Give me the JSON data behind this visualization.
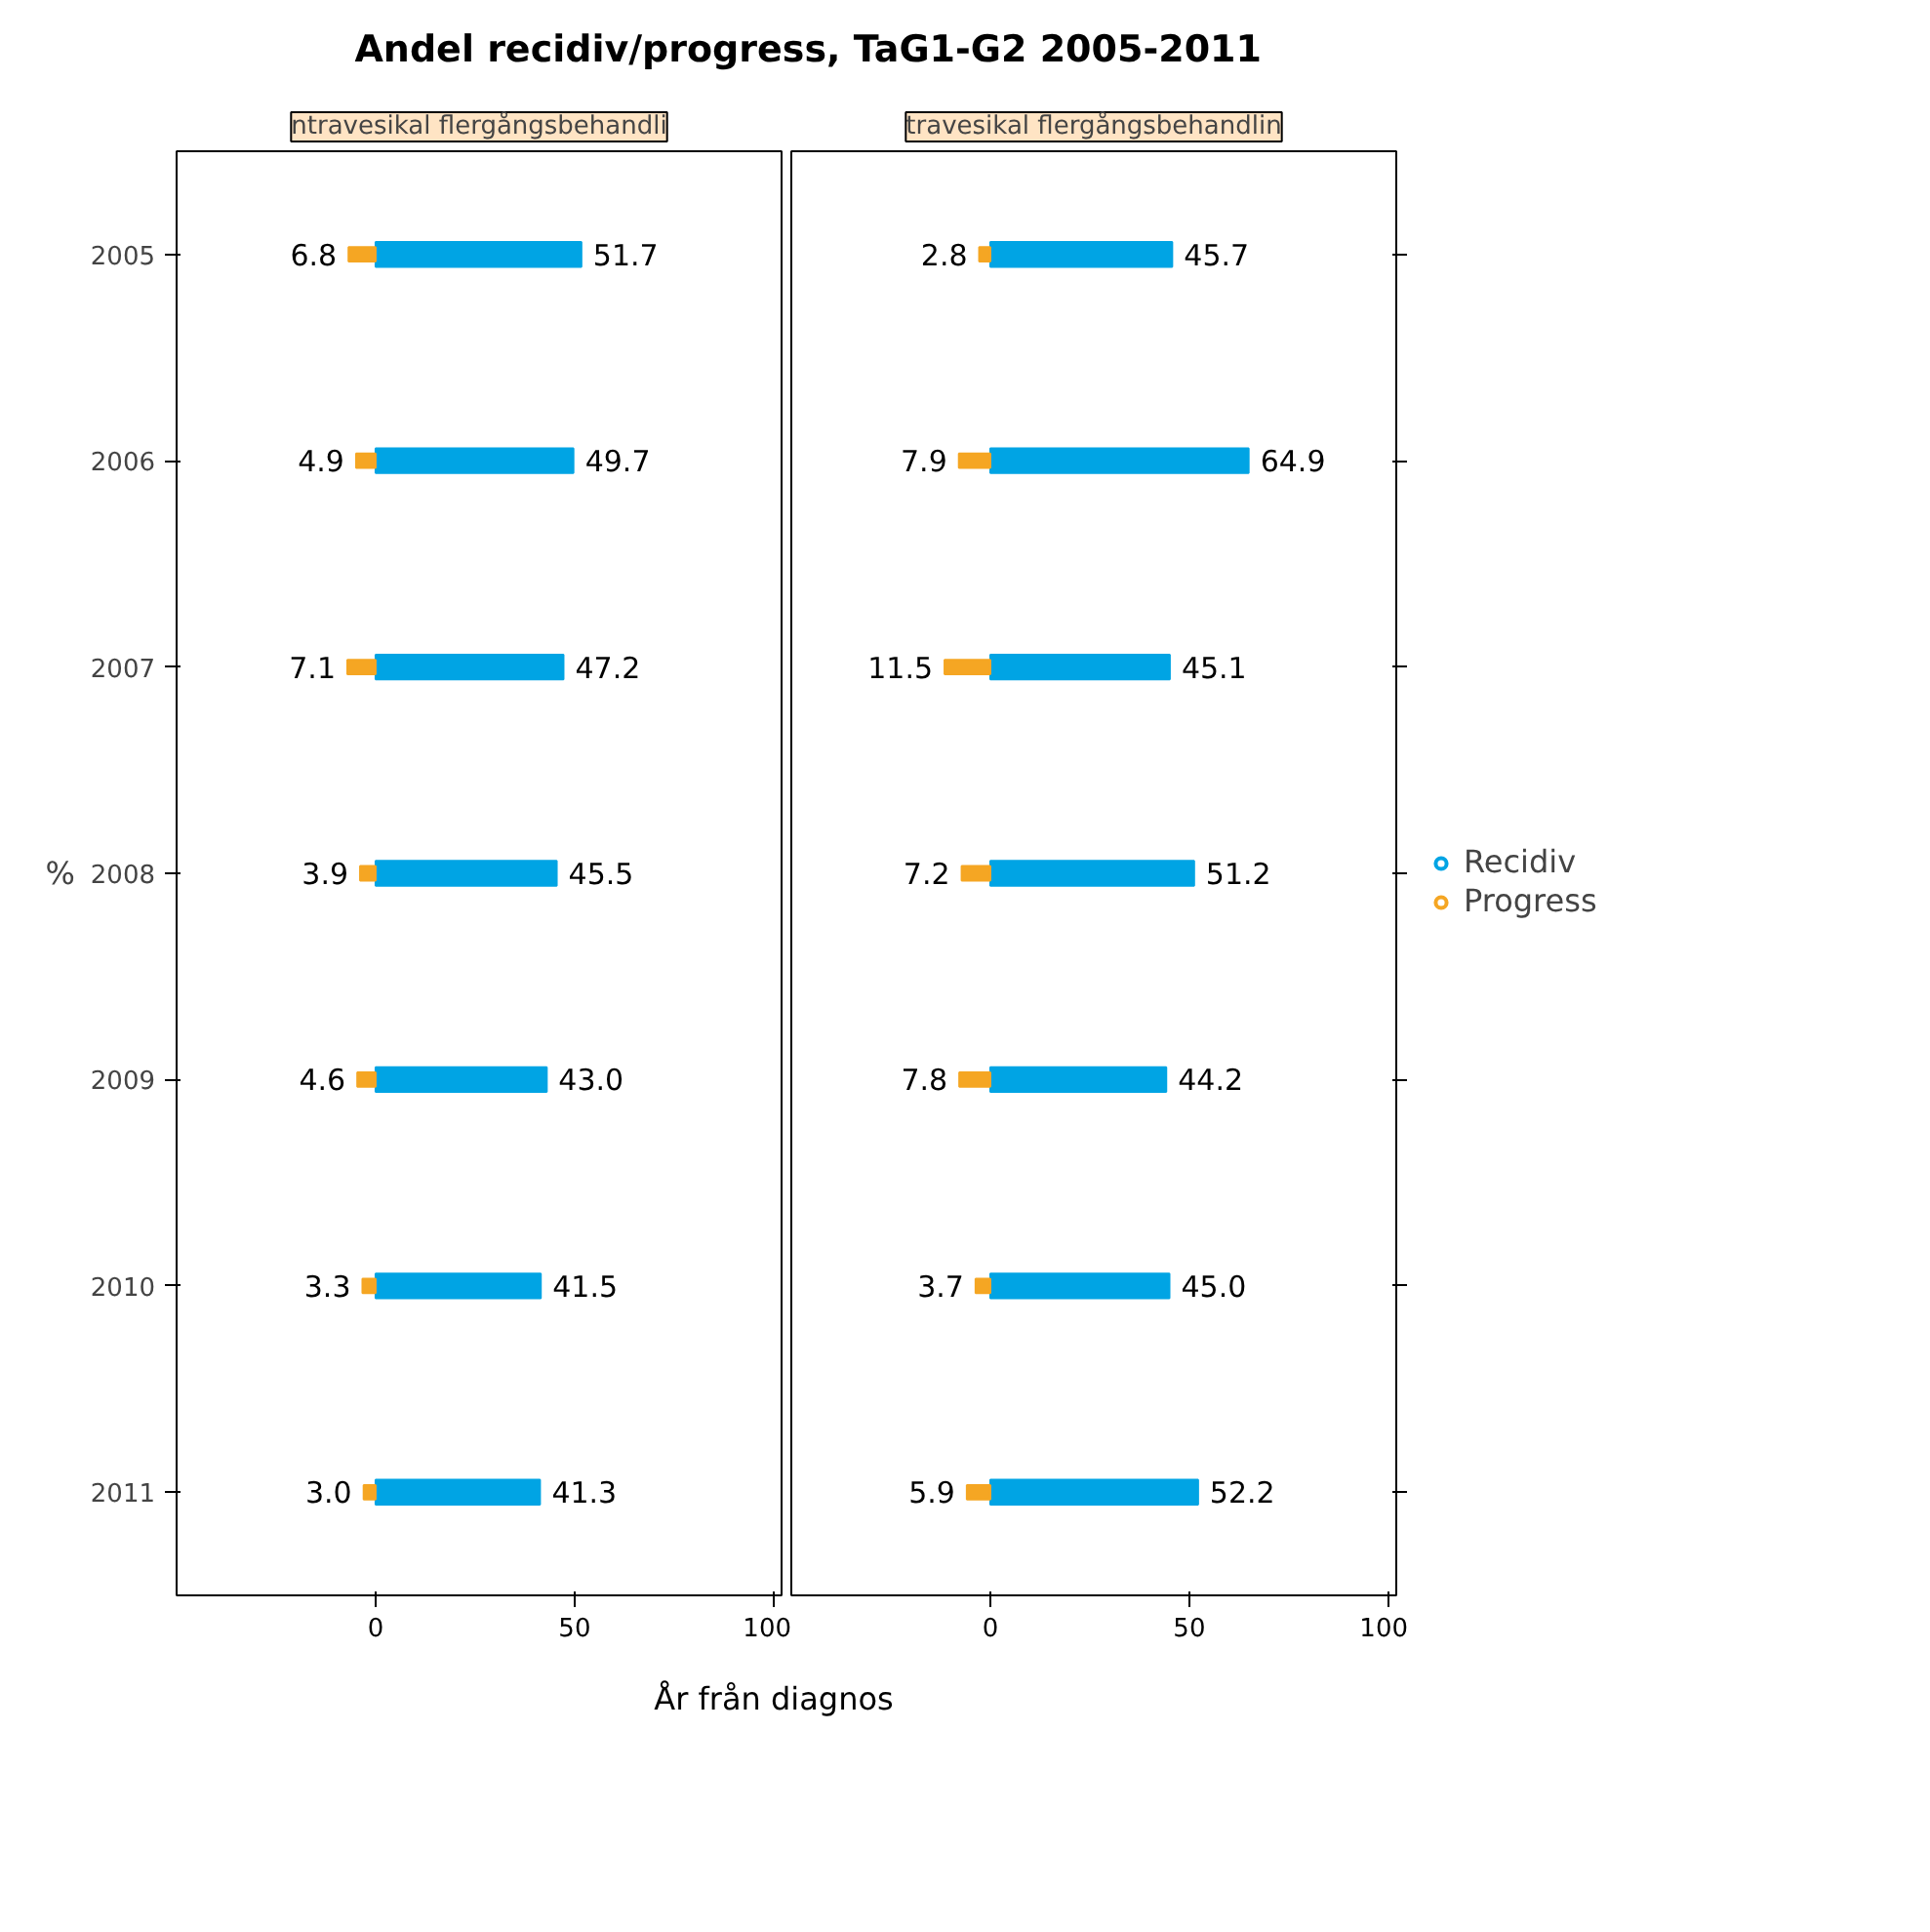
{
  "chart_data": [
    {
      "type": "bar",
      "orientation": "horizontal",
      "title": "Andel recidiv/progress, TaG1-G2 2005-2011",
      "subtitle": "ntravesikal flergångsbehandli",
      "xlabel": "År från diagnos",
      "ylabel": "%",
      "categories": [
        "2005",
        "2006",
        "2007",
        "2008",
        "2009",
        "2010",
        "2011"
      ],
      "xlim": [
        -50,
        102
      ],
      "xticks": [
        0,
        50,
        100
      ],
      "grid": false,
      "series": [
        {
          "color": "#00a4e4",
          "values": [
            51.7,
            49.7,
            47.2,
            45.5,
            43.0,
            41.5,
            41.3
          ],
          "value_labels": [
            "51.7",
            "49.7",
            "47.2",
            "45.5",
            "43.0",
            "41.5",
            "41.3"
          ]
        },
        {
          "color": "#f5a623",
          "base": [
            -6.8,
            -4.9,
            -7.1,
            -3.9,
            -4.6,
            -3.3,
            -3.0
          ],
          "values": [
            6.8,
            4.9,
            7.1,
            3.9,
            4.6,
            3.3,
            3.0
          ],
          "value_labels": [
            "6.8",
            "4.9",
            "7.1",
            "3.9",
            "4.6",
            "3.3",
            "3.0"
          ]
        }
      ]
    },
    {
      "type": "bar",
      "orientation": "horizontal",
      "subtitle": "travesikal flergångsbehandlin",
      "categories": [
        "2005",
        "2006",
        "2007",
        "2008",
        "2009",
        "2010",
        "2011"
      ],
      "xlim": [
        -50,
        102
      ],
      "xticks": [
        0,
        50,
        100
      ],
      "grid": false,
      "marker": "circle",
      "legend": "right",
      "tick_labels": "x",
      "series": [
        {
          "name": "Recidiv",
          "color": "#00a4e4",
          "values": [
            45.7,
            64.9,
            45.1,
            51.2,
            44.2,
            45.0,
            52.2
          ],
          "value_labels": [
            "45.7",
            "64.9",
            "45.1",
            "51.2",
            "44.2",
            "45.0",
            "52.2"
          ]
        },
        {
          "name": "Progress",
          "color": "#f5a623",
          "base": [
            -2.8,
            -7.9,
            -11.5,
            -7.2,
            -7.8,
            -3.7,
            -5.9
          ],
          "values": [
            2.8,
            7.9,
            11.5,
            7.2,
            7.8,
            3.7,
            5.9
          ],
          "value_labels": [
            "2.8",
            "7.9",
            "11.5",
            "7.2",
            "7.8",
            "3.7",
            "5.9"
          ]
        }
      ]
    }
  ]
}
